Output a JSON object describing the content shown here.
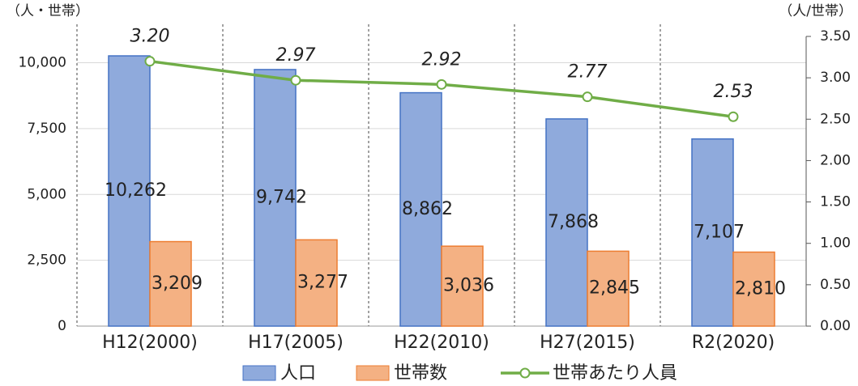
{
  "chart_data": {
    "type": "bar_line",
    "y_label": "（人・世帯）",
    "y2_label": "（人/世帯）",
    "categories": [
      "H12(2000)",
      "H17(2005)",
      "H22(2010)",
      "H27(2015)",
      "R2(2020)"
    ],
    "series": [
      {
        "name": "人口",
        "type": "bar",
        "color": "#8faadc",
        "edge": "#4472c4",
        "values": [
          10262,
          9742,
          8862,
          7868,
          7107
        ],
        "value_labels": [
          "10,262",
          "9,742",
          "8,862",
          "7,868",
          "7,107"
        ]
      },
      {
        "name": "世帯数",
        "type": "bar",
        "color": "#f4b183",
        "edge": "#ed7d31",
        "values": [
          3209,
          3277,
          3036,
          2845,
          2810
        ],
        "value_labels": [
          "3,209",
          "3,277",
          "3,036",
          "2,845",
          "2,810"
        ]
      },
      {
        "name": "世帯あたり人員",
        "type": "line",
        "axis": "y2",
        "color": "#70ad47",
        "values": [
          3.2,
          2.97,
          2.92,
          2.77,
          2.53
        ],
        "value_labels": [
          "3.20",
          "2.97",
          "2.92",
          "2.77",
          "2.53"
        ]
      }
    ],
    "ylim": [
      0,
      11000
    ],
    "yticks": [
      0,
      {
        "value": 2500,
        "label": "2,500"
      },
      {
        "value": 5000,
        "label": "5,000"
      },
      {
        "value": 7500,
        "label": "7,500"
      },
      {
        "value": 10000,
        "label": "10,000"
      }
    ],
    "y2lim": [
      0,
      3.5
    ],
    "y2ticks": [
      {
        "value": 0,
        "label": "0.00"
      },
      {
        "value": 0.5,
        "label": "0.50"
      },
      {
        "value": 1,
        "label": "1.00"
      },
      {
        "value": 1.5,
        "label": "1.50"
      },
      {
        "value": 2,
        "label": "2.00"
      },
      {
        "value": 2.5,
        "label": "2.50"
      },
      {
        "value": 3,
        "label": "3.00"
      },
      {
        "value": 3.5,
        "label": "3.50"
      }
    ],
    "grid": true
  }
}
